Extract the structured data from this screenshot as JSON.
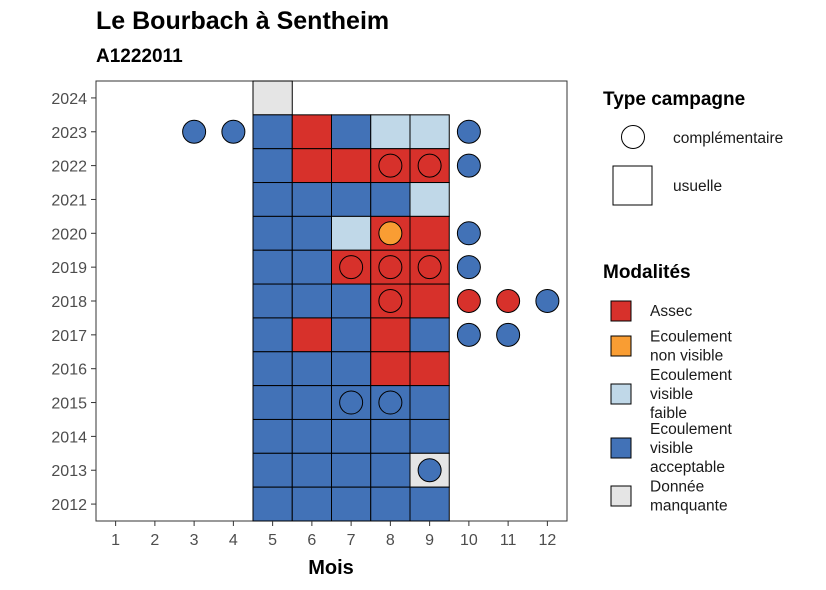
{
  "chart_data": {
    "type": "heatmap",
    "title": "Le Bourbach à Sentheim",
    "subtitle": "A1222011",
    "xlabel": "Mois",
    "ylabel": "",
    "x_ticks": [
      1,
      2,
      3,
      4,
      5,
      6,
      7,
      8,
      9,
      10,
      11,
      12
    ],
    "y_ticks": [
      2012,
      2013,
      2014,
      2015,
      2016,
      2017,
      2018,
      2019,
      2020,
      2021,
      2022,
      2023,
      2024
    ],
    "xlim": [
      0.5,
      12.5
    ],
    "ylim": [
      2011.5,
      2024.5
    ],
    "grid": false,
    "legend_position": "right",
    "modalites": [
      {
        "key": "assec",
        "label_lines": [
          "Assec"
        ],
        "color": "#d7312b"
      },
      {
        "key": "ecnv",
        "label_lines": [
          "Ecoulement",
          "non visible"
        ],
        "color": "#f99d33"
      },
      {
        "key": "ecvf",
        "label_lines": [
          "Ecoulement",
          "visible",
          "faible"
        ],
        "color": "#c0d8e8"
      },
      {
        "key": "ecva",
        "label_lines": [
          "Ecoulement",
          "visible",
          "acceptable"
        ],
        "color": "#4272b7"
      },
      {
        "key": "dm",
        "label_lines": [
          "Donnée",
          "manquante"
        ],
        "color": "#e5e5e5"
      }
    ],
    "type_campagne": {
      "title": "Type campagne",
      "items": [
        {
          "key": "complementaire",
          "label": "complémentaire",
          "shape": "circle"
        },
        {
          "key": "usuelle",
          "label": "usuelle",
          "shape": "square"
        }
      ]
    },
    "modalites_title": "Modalités",
    "usuelle": [
      {
        "year": 2024,
        "month": 5,
        "value": "dm"
      },
      {
        "year": 2023,
        "month": 5,
        "value": "ecva"
      },
      {
        "year": 2023,
        "month": 6,
        "value": "assec"
      },
      {
        "year": 2023,
        "month": 7,
        "value": "ecva"
      },
      {
        "year": 2023,
        "month": 8,
        "value": "ecvf"
      },
      {
        "year": 2023,
        "month": 9,
        "value": "ecvf"
      },
      {
        "year": 2022,
        "month": 5,
        "value": "ecva"
      },
      {
        "year": 2022,
        "month": 6,
        "value": "assec"
      },
      {
        "year": 2022,
        "month": 7,
        "value": "assec"
      },
      {
        "year": 2022,
        "month": 8,
        "value": "assec"
      },
      {
        "year": 2022,
        "month": 9,
        "value": "assec"
      },
      {
        "year": 2021,
        "month": 5,
        "value": "ecva"
      },
      {
        "year": 2021,
        "month": 6,
        "value": "ecva"
      },
      {
        "year": 2021,
        "month": 7,
        "value": "ecva"
      },
      {
        "year": 2021,
        "month": 8,
        "value": "ecva"
      },
      {
        "year": 2021,
        "month": 9,
        "value": "ecvf"
      },
      {
        "year": 2020,
        "month": 5,
        "value": "ecva"
      },
      {
        "year": 2020,
        "month": 6,
        "value": "ecva"
      },
      {
        "year": 2020,
        "month": 7,
        "value": "ecvf"
      },
      {
        "year": 2020,
        "month": 8,
        "value": "assec"
      },
      {
        "year": 2020,
        "month": 9,
        "value": "assec"
      },
      {
        "year": 2019,
        "month": 5,
        "value": "ecva"
      },
      {
        "year": 2019,
        "month": 6,
        "value": "ecva"
      },
      {
        "year": 2019,
        "month": 7,
        "value": "assec"
      },
      {
        "year": 2019,
        "month": 8,
        "value": "assec"
      },
      {
        "year": 2019,
        "month": 9,
        "value": "assec"
      },
      {
        "year": 2018,
        "month": 5,
        "value": "ecva"
      },
      {
        "year": 2018,
        "month": 6,
        "value": "ecva"
      },
      {
        "year": 2018,
        "month": 7,
        "value": "ecva"
      },
      {
        "year": 2018,
        "month": 8,
        "value": "assec"
      },
      {
        "year": 2018,
        "month": 9,
        "value": "assec"
      },
      {
        "year": 2017,
        "month": 5,
        "value": "ecva"
      },
      {
        "year": 2017,
        "month": 6,
        "value": "assec"
      },
      {
        "year": 2017,
        "month": 7,
        "value": "ecva"
      },
      {
        "year": 2017,
        "month": 8,
        "value": "assec"
      },
      {
        "year": 2017,
        "month": 9,
        "value": "ecva"
      },
      {
        "year": 2016,
        "month": 5,
        "value": "ecva"
      },
      {
        "year": 2016,
        "month": 6,
        "value": "ecva"
      },
      {
        "year": 2016,
        "month": 7,
        "value": "ecva"
      },
      {
        "year": 2016,
        "month": 8,
        "value": "assec"
      },
      {
        "year": 2016,
        "month": 9,
        "value": "assec"
      },
      {
        "year": 2015,
        "month": 5,
        "value": "ecva"
      },
      {
        "year": 2015,
        "month": 6,
        "value": "ecva"
      },
      {
        "year": 2015,
        "month": 7,
        "value": "ecva"
      },
      {
        "year": 2015,
        "month": 8,
        "value": "ecva"
      },
      {
        "year": 2015,
        "month": 9,
        "value": "ecva"
      },
      {
        "year": 2014,
        "month": 5,
        "value": "ecva"
      },
      {
        "year": 2014,
        "month": 6,
        "value": "ecva"
      },
      {
        "year": 2014,
        "month": 7,
        "value": "ecva"
      },
      {
        "year": 2014,
        "month": 8,
        "value": "ecva"
      },
      {
        "year": 2014,
        "month": 9,
        "value": "ecva"
      },
      {
        "year": 2013,
        "month": 5,
        "value": "ecva"
      },
      {
        "year": 2013,
        "month": 6,
        "value": "ecva"
      },
      {
        "year": 2013,
        "month": 7,
        "value": "ecva"
      },
      {
        "year": 2013,
        "month": 8,
        "value": "ecva"
      },
      {
        "year": 2013,
        "month": 9,
        "value": "dm"
      },
      {
        "year": 2012,
        "month": 5,
        "value": "ecva"
      },
      {
        "year": 2012,
        "month": 6,
        "value": "ecva"
      },
      {
        "year": 2012,
        "month": 7,
        "value": "ecva"
      },
      {
        "year": 2012,
        "month": 8,
        "value": "ecva"
      },
      {
        "year": 2012,
        "month": 9,
        "value": "ecva"
      }
    ],
    "complementaire": [
      {
        "year": 2023,
        "month": 3,
        "value": "ecva"
      },
      {
        "year": 2023,
        "month": 4,
        "value": "ecva"
      },
      {
        "year": 2023,
        "month": 10,
        "value": "ecva"
      },
      {
        "year": 2022,
        "month": 8,
        "value": "assec"
      },
      {
        "year": 2022,
        "month": 9,
        "value": "assec"
      },
      {
        "year": 2022,
        "month": 10,
        "value": "ecva"
      },
      {
        "year": 2020,
        "month": 8,
        "value": "ecnv"
      },
      {
        "year": 2020,
        "month": 10,
        "value": "ecva"
      },
      {
        "year": 2019,
        "month": 7,
        "value": "assec"
      },
      {
        "year": 2019,
        "month": 8,
        "value": "assec"
      },
      {
        "year": 2019,
        "month": 9,
        "value": "assec"
      },
      {
        "year": 2019,
        "month": 10,
        "value": "ecva"
      },
      {
        "year": 2018,
        "month": 8,
        "value": "assec"
      },
      {
        "year": 2018,
        "month": 10,
        "value": "assec"
      },
      {
        "year": 2018,
        "month": 11,
        "value": "assec"
      },
      {
        "year": 2018,
        "month": 12,
        "value": "ecva"
      },
      {
        "year": 2017,
        "month": 10,
        "value": "ecva"
      },
      {
        "year": 2017,
        "month": 11,
        "value": "ecva"
      },
      {
        "year": 2015,
        "month": 7,
        "value": "ecva"
      },
      {
        "year": 2015,
        "month": 8,
        "value": "ecva"
      },
      {
        "year": 2013,
        "month": 9,
        "value": "ecva"
      }
    ]
  }
}
